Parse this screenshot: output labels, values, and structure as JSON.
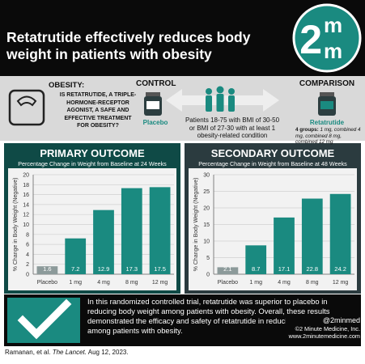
{
  "header": {
    "title": "Retatrutide effectively reduces body weight in patients with obesity",
    "logo": [
      "2",
      "m",
      "m"
    ]
  },
  "question": {
    "label": "OBESITY:",
    "text": "IS RETATRUTIDE, A TRIPLE-HORMONE-RECEPTOR AGONIST, A SAFE AND EFFECTIVE TREATMENT FOR OBESITY?"
  },
  "control": {
    "heading": "CONTROL",
    "arm": "Placebo"
  },
  "population": "Patients 18-75 with BMI of 30-50 or BMI of 27-30 with at least 1 obesity-related condition",
  "comparison": {
    "heading": "COMPARISON",
    "arm": "Retatrutide",
    "groups_label": "4 groups:",
    "groups": "1 mg, combined 4 mg, combined 8 mg, combined 12 mg"
  },
  "chart_data": [
    {
      "type": "bar",
      "title": "PRIMARY OUTCOME",
      "subtitle": "Percentage Change in Weight from Baseline at 24 Weeks",
      "y_label": "% Change in Body Weight (Negative)",
      "categories": [
        "Placebo",
        "1 mg",
        "4 mg",
        "8 mg",
        "12 mg"
      ],
      "values": [
        1.6,
        7.2,
        12.9,
        17.3,
        17.5
      ],
      "colors": [
        "#8c9a9a",
        "#1a8a80",
        "#1a8a80",
        "#1a8a80",
        "#1a8a80"
      ],
      "ylim": [
        0,
        20
      ],
      "yticks": [
        0,
        2,
        4,
        6,
        8,
        10,
        12,
        14,
        16,
        18,
        20
      ],
      "grid": true
    },
    {
      "type": "bar",
      "title": "SECONDARY OUTCOME",
      "subtitle": "Percentage Change in Weight from Baseline at 48 Weeks",
      "y_label": "% Change in Body Weight (Negative)",
      "categories": [
        "Placebo",
        "1 mg",
        "4 mg",
        "8 mg",
        "12 mg"
      ],
      "values": [
        2.1,
        8.7,
        17.1,
        22.8,
        24.2
      ],
      "colors": [
        "#8c9a9a",
        "#1a8a80",
        "#1a8a80",
        "#1a8a80",
        "#1a8a80"
      ],
      "ylim": [
        0,
        30
      ],
      "yticks": [
        0,
        5,
        10,
        15,
        20,
        25,
        30
      ],
      "grid": true
    }
  ],
  "conclusion": "In this randomized controlled trial, retatrutide was superior to placebo in reducing body weight among patients with obesity. Overall, these results demonstrated the efficacy and safety of retatrutide in reducing body weight among patients with obesity.",
  "credits": [
    "@2minmed",
    "©2 Minute Medicine, Inc.",
    "www.2minutemedicine.com"
  ],
  "citation": {
    "authors": "Ramanan, et al.",
    "journal": "The Lancet.",
    "date": "Aug 12, 2023."
  }
}
